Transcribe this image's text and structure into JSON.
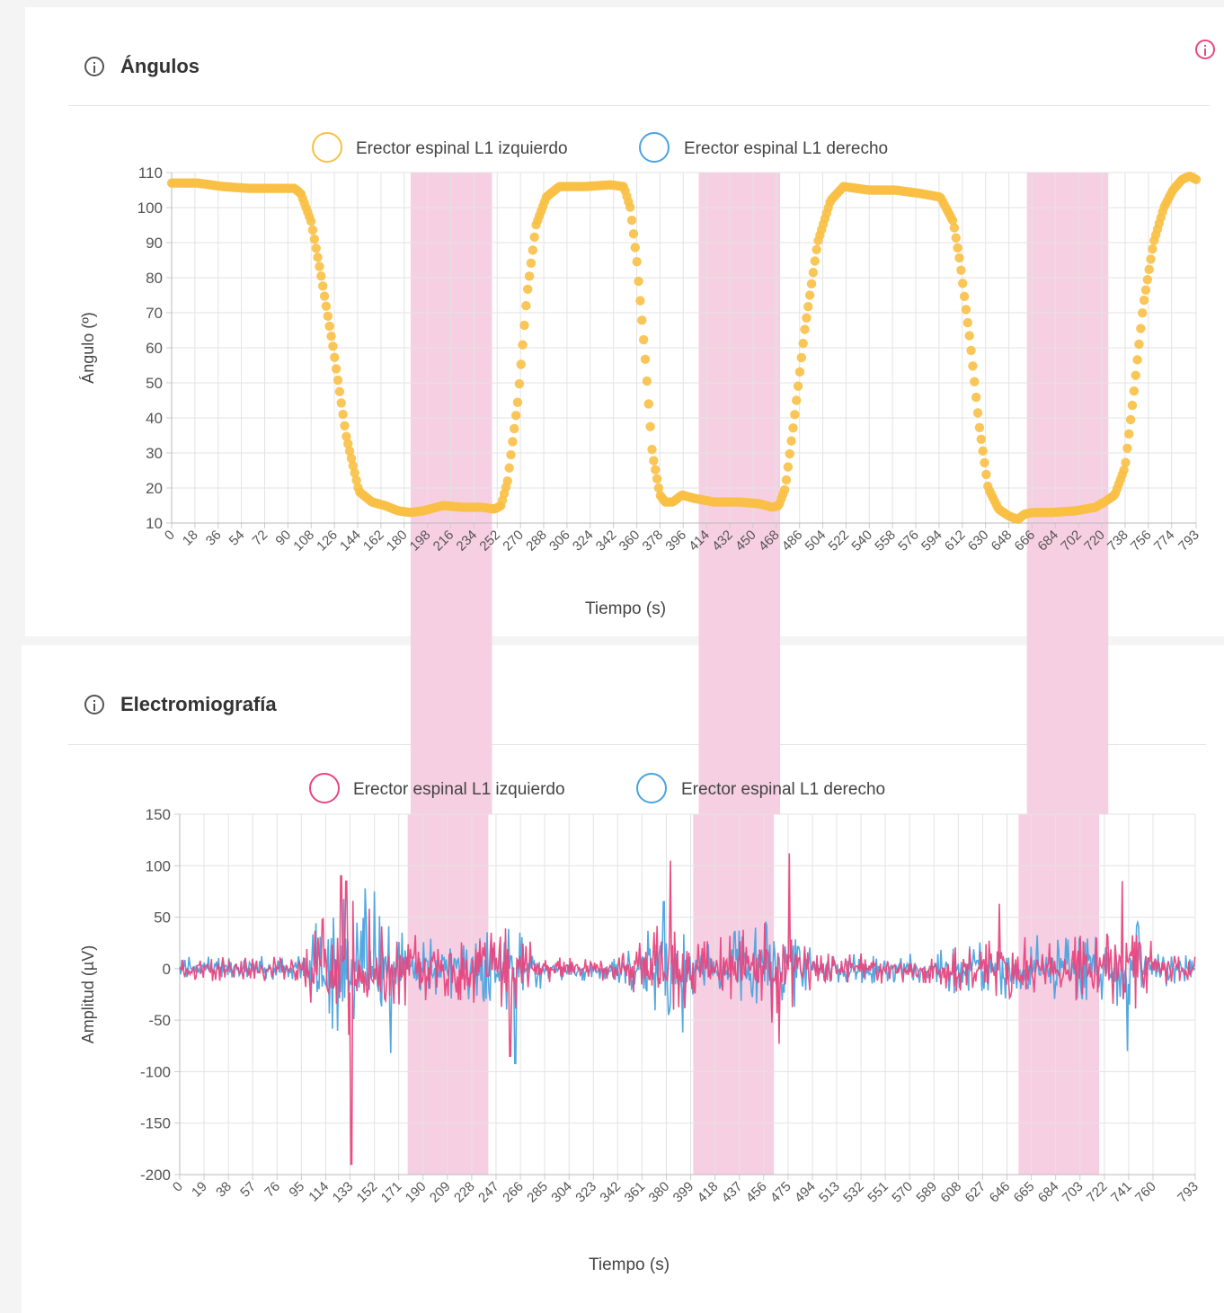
{
  "top_right_icon": "info-icon",
  "colors": {
    "yellow": "#f8c045",
    "blue": "#4aa3df",
    "pink": "#e8467e",
    "band": "#f7cfe3"
  },
  "panels": [
    {
      "title": "Ángulos",
      "icon": "info-icon"
    },
    {
      "title": "Electromiografía",
      "icon": "info-icon"
    }
  ],
  "chart_data": [
    {
      "type": "scatter",
      "title": "Ángulos",
      "xlabel": "Tiempo (s)",
      "ylabel": "Ángulo (º)",
      "ylim": [
        10,
        110
      ],
      "yticks": [
        10,
        20,
        30,
        40,
        50,
        60,
        70,
        80,
        90,
        100,
        110
      ],
      "xlim": [
        0,
        793
      ],
      "xticks": [
        0,
        18,
        36,
        54,
        72,
        90,
        108,
        126,
        144,
        162,
        180,
        198,
        216,
        234,
        252,
        270,
        288,
        306,
        324,
        342,
        360,
        378,
        396,
        414,
        432,
        450,
        468,
        486,
        504,
        522,
        540,
        558,
        576,
        594,
        612,
        630,
        648,
        666,
        684,
        702,
        720,
        738,
        756,
        774,
        793
      ],
      "grid": true,
      "legend_position": "top",
      "highlight_bands": [
        [
          185,
          248
        ],
        [
          408,
          471
        ],
        [
          662,
          725
        ]
      ],
      "series": [
        {
          "name": "Erector espinal L1 izquierdo",
          "color": "#f8c045",
          "x": [
            0,
            20,
            40,
            60,
            80,
            95,
            100,
            108,
            115,
            125,
            135,
            145,
            155,
            165,
            175,
            185,
            195,
            210,
            225,
            240,
            250,
            255,
            260,
            268,
            275,
            282,
            290,
            300,
            320,
            340,
            350,
            355,
            360,
            367,
            372,
            378,
            382,
            388,
            395,
            405,
            420,
            440,
            455,
            465,
            470,
            475,
            482,
            490,
            500,
            510,
            520,
            540,
            560,
            580,
            595,
            605,
            610,
            618,
            625,
            632,
            640,
            648,
            655,
            660,
            666,
            680,
            700,
            715,
            722,
            730,
            738,
            745,
            752,
            760,
            768,
            775,
            782,
            788,
            793
          ],
          "y": [
            107,
            107,
            106,
            105.5,
            105.5,
            105.5,
            104,
            96,
            82,
            60,
            35,
            19,
            16,
            15,
            13.5,
            13,
            13.5,
            15,
            14.5,
            14.5,
            14,
            15,
            22,
            45,
            75,
            95,
            103,
            106,
            106,
            106.5,
            106,
            100,
            85,
            55,
            30,
            18,
            16,
            16,
            18,
            17,
            16,
            16,
            15.5,
            14.5,
            15,
            20,
            40,
            65,
            90,
            102,
            106,
            105,
            105,
            104,
            103,
            96,
            85,
            62,
            38,
            20,
            14,
            12,
            11,
            12.5,
            13,
            13,
            13.5,
            14.5,
            16,
            18,
            26,
            48,
            72,
            90,
            100,
            105,
            108,
            109,
            108
          ]
        },
        {
          "name": "Erector espinal L1 derecho",
          "color": "#4aa3df",
          "x": [],
          "y": []
        }
      ]
    },
    {
      "type": "line",
      "title": "Electromiografía",
      "xlabel": "Tiempo (s)",
      "ylabel": "Amplitud (µV)",
      "ylim": [
        -200,
        150
      ],
      "yticks": [
        150,
        100,
        50,
        0,
        -50,
        -100,
        -150,
        -200
      ],
      "xlim": [
        0,
        793
      ],
      "xticks": [
        0,
        19,
        38,
        57,
        76,
        95,
        114,
        133,
        152,
        171,
        190,
        209,
        228,
        247,
        266,
        285,
        304,
        323,
        342,
        361,
        380,
        399,
        418,
        437,
        456,
        475,
        494,
        513,
        532,
        551,
        570,
        589,
        608,
        627,
        646,
        665,
        684,
        703,
        722,
        741,
        760,
        793
      ],
      "grid": true,
      "legend_position": "top",
      "highlight_bands": [
        [
          178,
          241
        ],
        [
          401,
          464
        ],
        [
          655,
          718
        ]
      ],
      "series": [
        {
          "name": "Erector espinal L1 izquierdo",
          "color": "#e8467e"
        },
        {
          "name": "Erector espinal L1 derecho",
          "color": "#4aa3df"
        }
      ],
      "envelope": [
        [
          0,
          12
        ],
        [
          90,
          12
        ],
        [
          100,
          30
        ],
        [
          110,
          60
        ],
        [
          130,
          70
        ],
        [
          150,
          60
        ],
        [
          170,
          40
        ],
        [
          200,
          28
        ],
        [
          230,
          35
        ],
        [
          250,
          40
        ],
        [
          260,
          45
        ],
        [
          270,
          30
        ],
        [
          290,
          12
        ],
        [
          340,
          12
        ],
        [
          360,
          35
        ],
        [
          380,
          50
        ],
        [
          400,
          35
        ],
        [
          420,
          30
        ],
        [
          440,
          40
        ],
        [
          460,
          55
        ],
        [
          480,
          40
        ],
        [
          500,
          15
        ],
        [
          590,
          15
        ],
        [
          600,
          25
        ],
        [
          620,
          25
        ],
        [
          640,
          30
        ],
        [
          660,
          35
        ],
        [
          690,
          30
        ],
        [
          720,
          35
        ],
        [
          740,
          50
        ],
        [
          760,
          30
        ],
        [
          775,
          15
        ],
        [
          793,
          12
        ]
      ],
      "spikes": [
        {
          "series": 0,
          "x": 134,
          "y": -190
        },
        {
          "series": 0,
          "x": 126,
          "y": 90
        },
        {
          "series": 0,
          "x": 130,
          "y": 85
        },
        {
          "series": 1,
          "x": 145,
          "y": 78
        },
        {
          "series": 1,
          "x": 152,
          "y": 75
        },
        {
          "series": 1,
          "x": 165,
          "y": -82
        },
        {
          "series": 0,
          "x": 258,
          "y": -85
        },
        {
          "series": 1,
          "x": 262,
          "y": -92
        },
        {
          "series": 0,
          "x": 383,
          "y": 105
        },
        {
          "series": 1,
          "x": 378,
          "y": 65
        },
        {
          "series": 1,
          "x": 393,
          "y": -62
        },
        {
          "series": 0,
          "x": 476,
          "y": 112
        },
        {
          "series": 0,
          "x": 468,
          "y": -73
        },
        {
          "series": 0,
          "x": 640,
          "y": 63
        },
        {
          "series": 0,
          "x": 736,
          "y": 85
        },
        {
          "series": 1,
          "x": 740,
          "y": -80
        },
        {
          "series": 1,
          "x": 748,
          "y": 45
        }
      ]
    }
  ]
}
